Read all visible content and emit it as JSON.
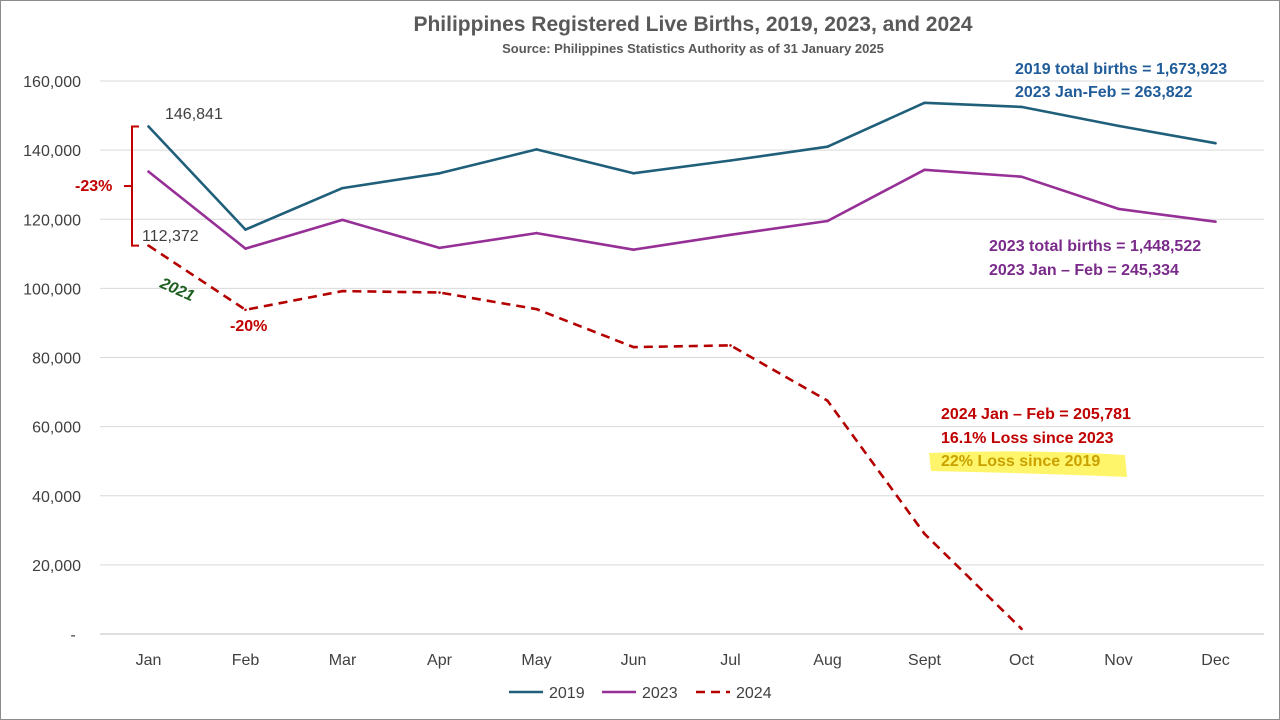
{
  "chart_data": {
    "type": "line",
    "title": "Philippines Registered Live Births, 2019, 2023, and 2024",
    "subtitle": "Source: Philippines Statistics Authority as of 31 January 2025",
    "categories": [
      "Jan",
      "Feb",
      "Mar",
      "Apr",
      "May",
      "Jun",
      "Jul",
      "Aug",
      "Sept",
      "Oct",
      "Nov",
      "Dec"
    ],
    "y_ticks": [
      {
        "value": 0,
        "label": "-"
      },
      {
        "value": 20000,
        "label": "20,000"
      },
      {
        "value": 40000,
        "label": "40,000"
      },
      {
        "value": 60000,
        "label": "60,000"
      },
      {
        "value": 80000,
        "label": "80,000"
      },
      {
        "value": 100000,
        "label": "100,000"
      },
      {
        "value": 120000,
        "label": "120,000"
      },
      {
        "value": 140000,
        "label": "140,000"
      },
      {
        "value": 160000,
        "label": "160,000"
      }
    ],
    "ylim": [
      0,
      160000
    ],
    "grid": true,
    "legend_position": "bottom",
    "series": [
      {
        "name": "2019",
        "color": "#1f5f7a",
        "dashed": false,
        "values": [
          146841,
          117000,
          129000,
          133300,
          140200,
          133300,
          137000,
          141000,
          153700,
          152500,
          147000,
          142000
        ]
      },
      {
        "name": "2023",
        "color": "#962f96",
        "dashed": false,
        "values": [
          133800,
          111500,
          119800,
          111700,
          116000,
          111200,
          115500,
          119500,
          134300,
          132300,
          123000,
          119300
        ]
      },
      {
        "name": "2024",
        "color": "#b40000",
        "dashed": true,
        "values": [
          112372,
          93800,
          99200,
          98800,
          94000,
          83000,
          83500,
          67500,
          29000,
          1500,
          null,
          null
        ]
      }
    ],
    "annotations": {
      "jan_2019_value": {
        "text": "146,841",
        "color": "#404040"
      },
      "jan_2024_value": {
        "text": "112,372",
        "color": "#404040"
      },
      "jan_change": {
        "text": "-23%",
        "color": "#c00000"
      },
      "feb_change": {
        "text": "-20%",
        "color": "#c00000"
      },
      "year_2021": {
        "text": "2021",
        "color": "#1e5e1e"
      },
      "summary_2019": {
        "line1": "2019 total births = 1,673,923",
        "line2": "2023 Jan-Feb = 263,822",
        "color": "#1f5c99"
      },
      "summary_2023": {
        "line1": "2023 total births = 1,448,522",
        "line2": "2023 Jan – Feb = 245,334",
        "color": "#7a2a8a"
      },
      "summary_2024": {
        "line1": "2024 Jan – Feb = 205,781",
        "line2": "16.1% Loss since 2023",
        "color": "#c00000"
      },
      "highlight": {
        "text": "22% Loss since 2019",
        "color": "#c9a100",
        "bg": "#fff56a"
      }
    }
  }
}
